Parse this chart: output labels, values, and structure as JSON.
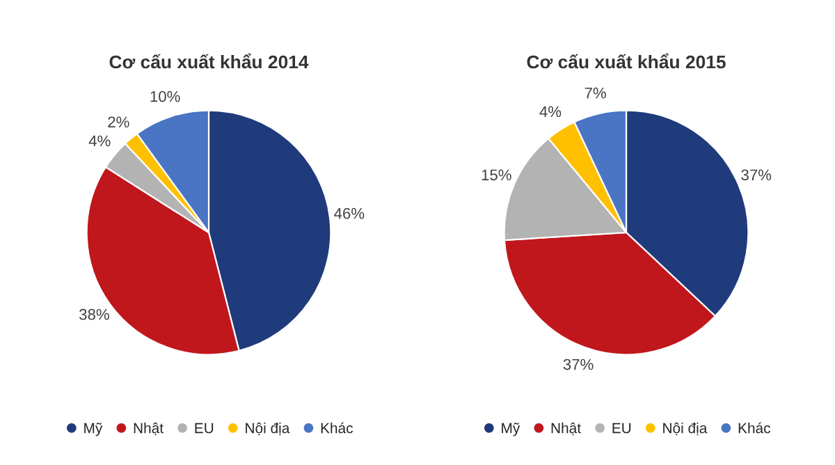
{
  "chart_data": [
    {
      "type": "pie",
      "title": "Cơ cấu xuất khẩu 2014",
      "categories": [
        "Mỹ",
        "Nhật",
        "EU",
        "Nội địa",
        "Khác"
      ],
      "values": [
        46,
        38,
        4,
        2,
        10
      ],
      "value_labels": [
        "46%",
        "38%",
        "4%",
        "2%",
        "10%"
      ],
      "colors": [
        "#1f3b7b",
        "#c0171d",
        "#b3b3b3",
        "#ffc000",
        "#4a74c4"
      ],
      "legend": "bottom"
    },
    {
      "type": "pie",
      "title": "Cơ cấu xuất khẩu 2015",
      "categories": [
        "Mỹ",
        "Nhật",
        "EU",
        "Nội địa",
        "Khác"
      ],
      "values": [
        37,
        37,
        15,
        4,
        7
      ],
      "value_labels": [
        "37%",
        "37%",
        "15%",
        "4%",
        "7%"
      ],
      "colors": [
        "#1f3b7b",
        "#c0171d",
        "#b3b3b3",
        "#ffc000",
        "#4a74c4"
      ],
      "legend": "bottom"
    }
  ]
}
